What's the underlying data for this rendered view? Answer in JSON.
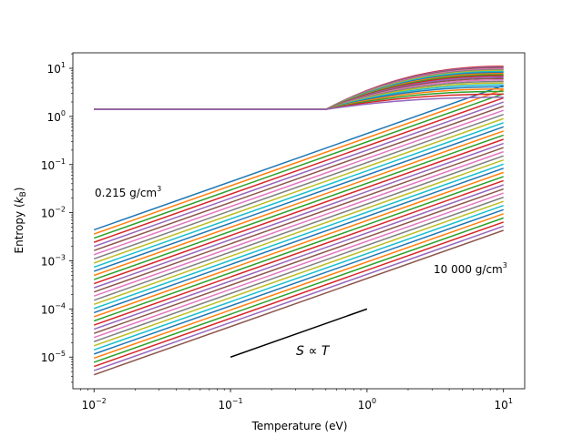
{
  "chart_data": {
    "type": "line",
    "scale": {
      "x": "log",
      "y": "log"
    },
    "xlim": [
      0.007,
      14.3
    ],
    "ylim": [
      2.2e-06,
      21
    ],
    "xlabel": "Temperature (eV)",
    "ylabel": "Entropy (k_B)",
    "ylabel_base": "Entropy (",
    "ylabel_k": "k",
    "ylabel_sub": "B",
    "ylabel_close": ")",
    "x_ticks": [
      {
        "value": 0.01,
        "base": "10",
        "exp": "−2"
      },
      {
        "value": 0.1,
        "base": "10",
        "exp": "−1"
      },
      {
        "value": 1,
        "base": "10",
        "exp": "0"
      },
      {
        "value": 10,
        "base": "10",
        "exp": "1"
      }
    ],
    "y_ticks": [
      {
        "value": 1e-05,
        "base": "10",
        "exp": "−5"
      },
      {
        "value": 0.0001,
        "base": "10",
        "exp": "−4"
      },
      {
        "value": 0.001,
        "base": "10",
        "exp": "−3"
      },
      {
        "value": 0.01,
        "base": "10",
        "exp": "−2"
      },
      {
        "value": 0.1,
        "base": "10",
        "exp": "−1"
      },
      {
        "value": 1,
        "base": "10",
        "exp": "0"
      },
      {
        "value": 10,
        "base": "10",
        "exp": "1"
      }
    ],
    "x_range_data": [
      0.01,
      10
    ],
    "lower_family": {
      "description": "S proportional to T, one line per density",
      "count": 36,
      "s_at_T_min": {
        "highest": 0.0044,
        "lowest": 4.3e-06
      }
    },
    "upper_family": {
      "count": 22,
      "plateau": 1.4,
      "rise_start_T": 0.5,
      "end_values_range": [
        2.5,
        11
      ]
    },
    "palette": [
      "#1f77b4",
      "#ff7f0e",
      "#2ca02c",
      "#d62728",
      "#9467bd",
      "#8c564b",
      "#e377c2",
      "#7f7f7f",
      "#bcbd22",
      "#17becf"
    ],
    "reference_line": {
      "x": [
        0.1,
        1
      ],
      "y": [
        1e-05,
        0.0001
      ],
      "label": "S ∝ T",
      "label_S": "S",
      "label_rel": " ∝ ",
      "label_T": "T"
    },
    "annotations": [
      {
        "text": "0.215 g/cm",
        "sup": "3",
        "position": "left-middle"
      },
      {
        "text": "10 000 g/cm",
        "sup": "3",
        "position": "right-lower"
      }
    ]
  }
}
